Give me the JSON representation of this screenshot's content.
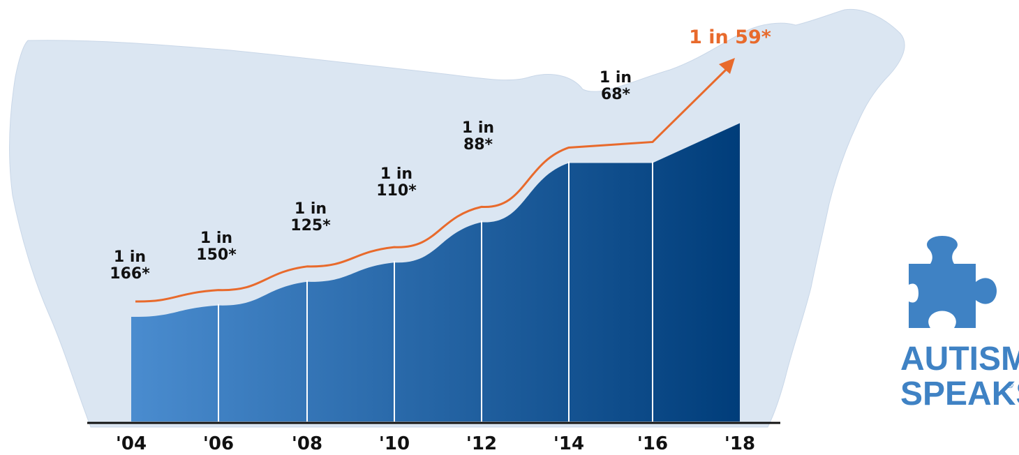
{
  "colors": {
    "map": "#dbe6f2",
    "map_edge": "#c9d7e8",
    "bar_light": "#4a8ccf",
    "bar_dark": "#003d7a",
    "arrow": "#e86a2c",
    "axis": "#111111",
    "brand": "#3f82c4"
  },
  "chart_data": {
    "type": "area",
    "categories": [
      "'04",
      "'06",
      "'08",
      "'10",
      "'12",
      "'14",
      "'16",
      "'18"
    ],
    "labels": [
      "1 in\n166*",
      "1 in\n150*",
      "1 in\n125*",
      "1 in\n110*",
      "1 in\n88*",
      "",
      "1 in\n68*",
      "1 in 59*"
    ],
    "prevalence_one_in": [
      166,
      150,
      125,
      110,
      88,
      68,
      68,
      59
    ],
    "ylim": [
      0,
      2.0
    ],
    "grid": false,
    "legend": "none",
    "trend": "arrow"
  },
  "brand": {
    "line1": "AUTISM",
    "line2": "SPEAKS",
    "mark": "®",
    "icon": "puzzle-piece-icon"
  }
}
